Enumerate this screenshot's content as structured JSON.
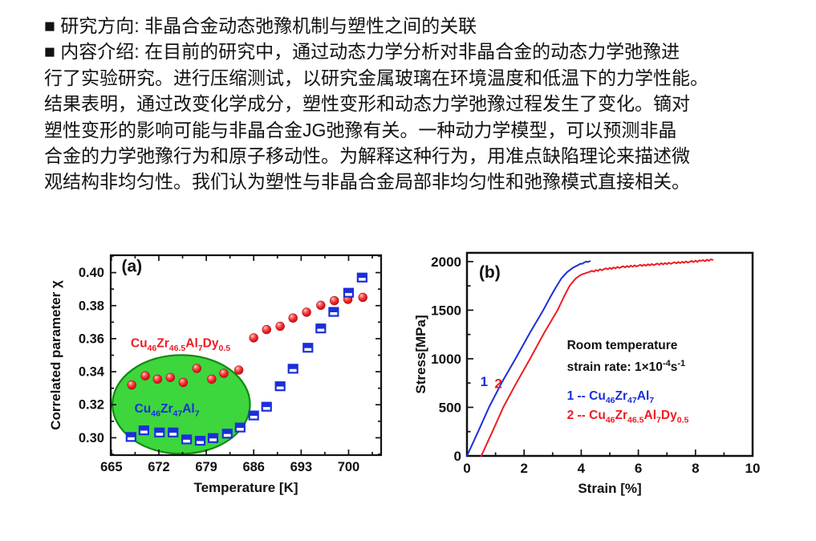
{
  "header": {
    "line1": "■ 研究方向: 非晶合金动态弛豫机制与塑性之间的关联",
    "para_lines": [
      "■ 内容介绍: 在目前的研究中，通过动态力学分析对非晶合金的动态力学弛豫进",
      "行了实验研究。进行压缩测试，以研究金属玻璃在环境温度和低温下的力学性能。",
      "结果表明，通过改变化学成分，塑性变形和动态力学弛豫过程发生了变化。镝对",
      "塑性变形的影响可能与非晶合金JG弛豫有关。一种动力学模型，可以预测非晶",
      "合金的力学弛豫行为和原子移动性。为解释这种行为，用准点缺陷理论来描述微",
      "观结构非均匀性。我们认为塑性与非晶合金局部非均匀性和弛豫模式直接相关。"
    ]
  },
  "colors": {
    "red": "#ed1c24",
    "blue": "#1b2fd9",
    "green_fill": "#3dd63d",
    "green_stroke": "#118a11",
    "axis": "#111111"
  },
  "chart_data": [
    {
      "id": "a",
      "type": "scatter",
      "panel_label": "(a)",
      "panel_label_pos": [
        666.5,
        0.4005
      ],
      "xlabel": "Temperature [K]",
      "ylabel": "Correlated parameter χ",
      "xlim": [
        664.9,
        704.8
      ],
      "ylim": [
        0.2895,
        0.4105
      ],
      "xticks": [
        665,
        672,
        679,
        686,
        693,
        700
      ],
      "x_minor": [
        668.5,
        675.5,
        682.5,
        689.5,
        696.5,
        703.5
      ],
      "yticks": [
        0.3,
        0.32,
        0.34,
        0.36,
        0.38,
        0.4
      ],
      "ytick_labels": [
        "0.30",
        "0.32",
        "0.34",
        "0.36",
        "0.38",
        "0.40"
      ],
      "y_minor": [
        0.29,
        0.31,
        0.33,
        0.35,
        0.37,
        0.39,
        0.41
      ],
      "grid": false,
      "legend_position": "inside",
      "highlight_ellipse": {
        "cx": 675.3,
        "cy": 0.3202,
        "rx": 10.15,
        "ry": 0.0299
      },
      "series": [
        {
          "name": "Cu46Zr46.5Al7Dy0.5",
          "formula": [
            [
              "Cu",
              "46"
            ],
            [
              "Zr",
              "46.5"
            ],
            [
              "Al",
              "7"
            ],
            [
              "Dy",
              "0.5"
            ]
          ],
          "color": "#ed1c24",
          "marker": "sphere",
          "label_pos": [
            675.2,
            0.3548
          ],
          "points": [
            [
              668.0,
              0.332
            ],
            [
              670.0,
              0.3375
            ],
            [
              671.8,
              0.3355
            ],
            [
              673.7,
              0.3365
            ],
            [
              675.6,
              0.3335
            ],
            [
              677.6,
              0.342
            ],
            [
              679.8,
              0.3355
            ],
            [
              681.6,
              0.339
            ],
            [
              683.8,
              0.341
            ],
            [
              686.0,
              0.3605
            ],
            [
              687.9,
              0.3655
            ],
            [
              689.9,
              0.3675
            ],
            [
              691.8,
              0.3725
            ],
            [
              693.8,
              0.376
            ],
            [
              695.9,
              0.3802
            ],
            [
              697.9,
              0.383
            ],
            [
              699.9,
              0.3838
            ],
            [
              702.1,
              0.385
            ]
          ]
        },
        {
          "name": "Cu46Zr47Al7",
          "formula": [
            [
              "Cu",
              "46"
            ],
            [
              "Zr",
              "47"
            ],
            [
              "Al",
              "7"
            ]
          ],
          "color": "#1b2fd9",
          "marker": "half-square",
          "label_pos": [
            673.2,
            0.3152
          ],
          "points": [
            [
              667.9,
              0.3005
            ],
            [
              669.8,
              0.3045
            ],
            [
              672.1,
              0.3032
            ],
            [
              674.1,
              0.3032
            ],
            [
              676.1,
              0.299
            ],
            [
              678.1,
              0.2982
            ],
            [
              680.0,
              0.2998
            ],
            [
              682.1,
              0.3025
            ],
            [
              684.0,
              0.3062
            ],
            [
              686.0,
              0.3135
            ],
            [
              687.9,
              0.3188
            ],
            [
              689.9,
              0.3312
            ],
            [
              691.8,
              0.3418
            ],
            [
              694.0,
              0.3545
            ],
            [
              695.9,
              0.3662
            ],
            [
              697.8,
              0.3762
            ],
            [
              700.0,
              0.3878
            ],
            [
              702.0,
              0.397
            ]
          ]
        }
      ]
    },
    {
      "id": "b",
      "type": "line",
      "panel_label": "(b)",
      "panel_label_pos": [
        0.42,
        1835
      ],
      "xlabel": "Strain [%]",
      "ylabel": "Stress[MPa]",
      "xlim": [
        0,
        10
      ],
      "ylim": [
        0,
        2090
      ],
      "xticks": [
        0,
        2,
        4,
        6,
        8,
        10
      ],
      "x_minor": [
        1,
        3,
        5,
        7,
        9
      ],
      "yticks": [
        0,
        500,
        1000,
        1500,
        2000
      ],
      "y_minor": [
        250,
        750,
        1250,
        1750
      ],
      "grid": false,
      "annotations": [
        {
          "text": "Room temperature",
          "pos": [
            3.5,
            1100
          ],
          "color": "#111111"
        },
        {
          "rich": [
            [
              "strain rate: 1×10",
              "-4"
            ],
            [
              "s",
              "-1"
            ]
          ],
          "pos": [
            3.5,
            875
          ],
          "color": "#111111"
        }
      ],
      "legend": [
        {
          "prefix": "1 -- ",
          "formula": [
            [
              "Cu",
              "46"
            ],
            [
              "Zr",
              "47"
            ],
            [
              "Al",
              "7"
            ]
          ],
          "color": "#1b2fd9",
          "pos": [
            3.5,
            580
          ]
        },
        {
          "prefix": "2 -- ",
          "formula": [
            [
              "Cu",
              "46"
            ],
            [
              "Zr",
              "46.5"
            ],
            [
              "Al",
              "7"
            ],
            [
              "Dy",
              "0.5"
            ]
          ],
          "color": "#ed1c24",
          "pos": [
            3.5,
            378
          ]
        }
      ],
      "curve_labels": [
        {
          "text": "1",
          "pos": [
            0.6,
            720
          ],
          "color": "#1b2fd9"
        },
        {
          "text": "2",
          "pos": [
            1.1,
            700
          ],
          "color": "#ed1c24"
        }
      ],
      "series": [
        {
          "name": "Cu46Zr47Al7",
          "color": "#1b2fd9",
          "serrate_from": 3.8,
          "serrate_amp": 4,
          "points": [
            [
              0.0,
              0
            ],
            [
              0.4,
              255
            ],
            [
              0.77,
              500
            ],
            [
              1.2,
              745
            ],
            [
              1.7,
              1000
            ],
            [
              2.2,
              1265
            ],
            [
              2.67,
              1500
            ],
            [
              2.9,
              1625
            ],
            [
              3.1,
              1730
            ],
            [
              3.3,
              1825
            ],
            [
              3.5,
              1890
            ],
            [
              3.7,
              1935
            ],
            [
              3.9,
              1965
            ],
            [
              4.1,
              1990
            ],
            [
              4.3,
              2005
            ]
          ]
        },
        {
          "name": "Cu46Zr46.5Al7Dy0.5",
          "color": "#ed1c24",
          "serrate_from": 4.2,
          "serrate_amp": 7,
          "points": [
            [
              0.5,
              0
            ],
            [
              0.9,
              255
            ],
            [
              1.27,
              500
            ],
            [
              1.72,
              745
            ],
            [
              2.21,
              1000
            ],
            [
              2.7,
              1265
            ],
            [
              3.17,
              1500
            ],
            [
              3.4,
              1640
            ],
            [
              3.6,
              1755
            ],
            [
              3.8,
              1825
            ],
            [
              4.0,
              1865
            ],
            [
              4.3,
              1895
            ],
            [
              4.8,
              1922
            ],
            [
              5.4,
              1943
            ],
            [
              6.0,
              1958
            ],
            [
              6.6,
              1972
            ],
            [
              7.2,
              1985
            ],
            [
              7.8,
              1998
            ],
            [
              8.2,
              2007
            ],
            [
              8.6,
              2018
            ]
          ]
        }
      ]
    }
  ]
}
